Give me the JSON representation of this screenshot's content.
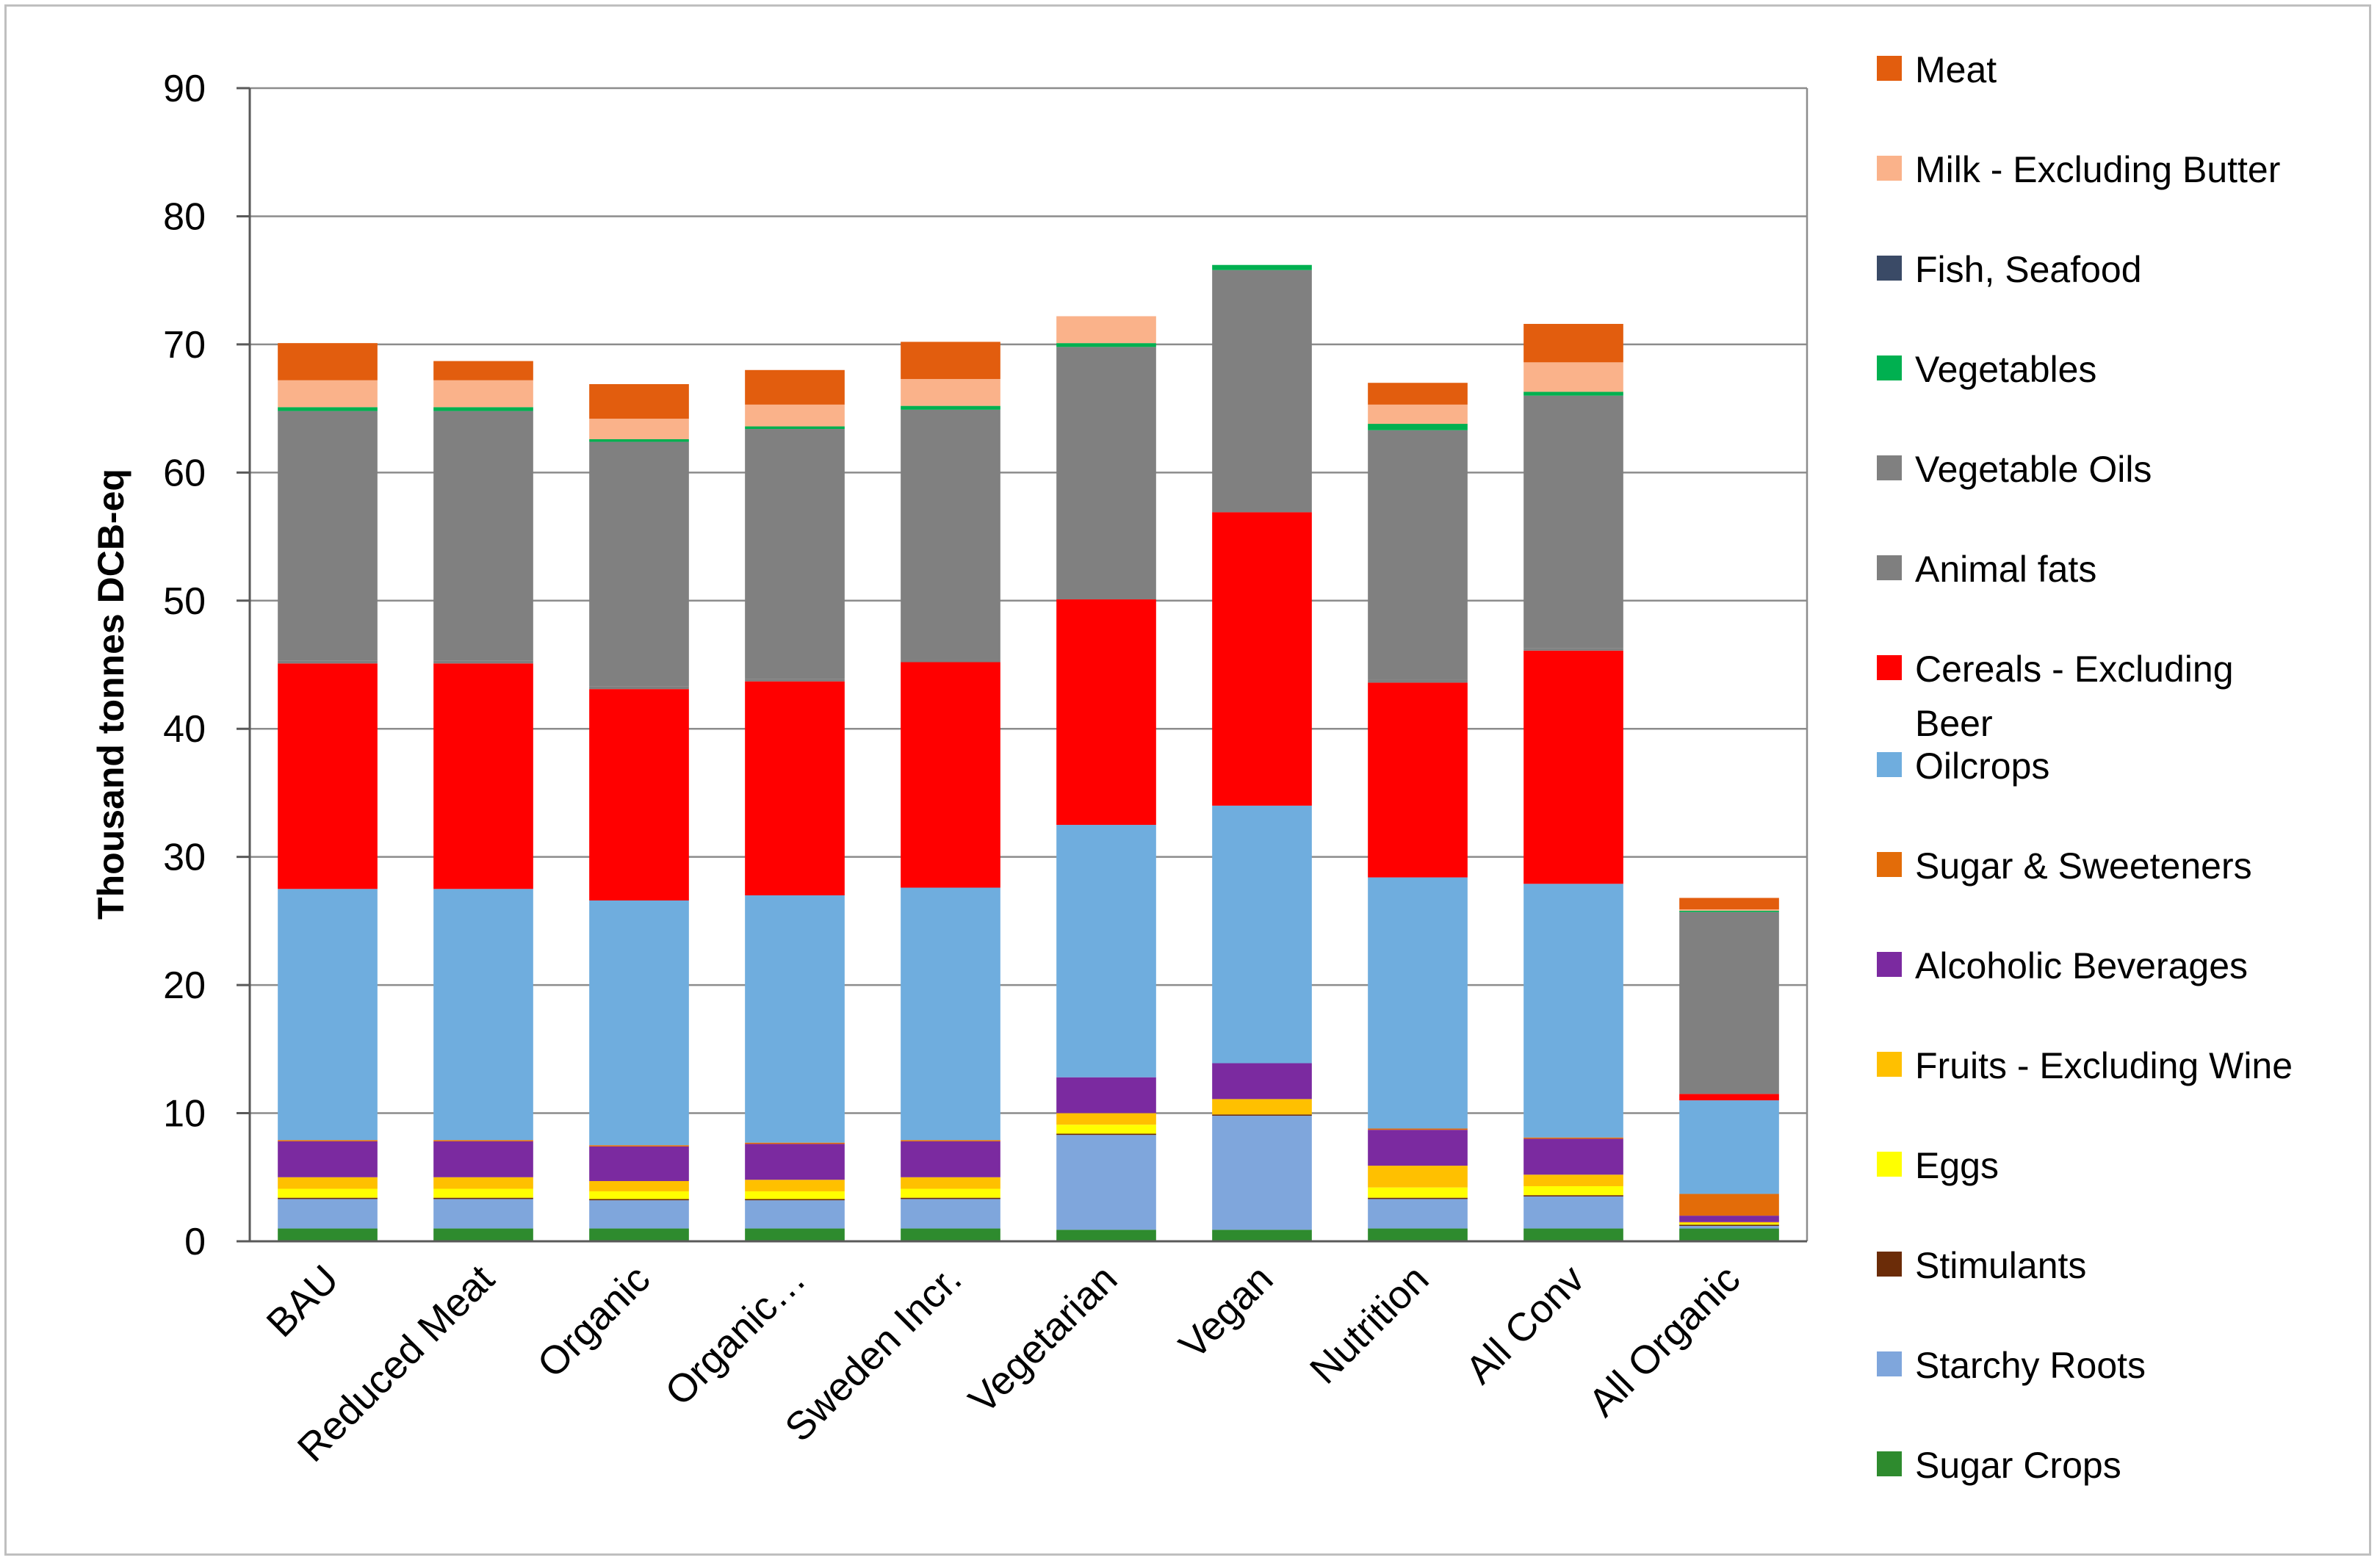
{
  "chart_data": {
    "type": "bar",
    "stacked": true,
    "title": "",
    "xlabel": "",
    "ylabel": "Thousand tonnes DCB-eq",
    "ylim": [
      0,
      90
    ],
    "yticks": [
      0,
      10,
      20,
      30,
      40,
      50,
      60,
      70,
      80,
      90
    ],
    "grid": true,
    "legend_position": "right",
    "categories": [
      "BAU",
      "Reduced Meat",
      "Organic",
      "Organic…",
      "Sweden Incr.",
      "Vegetarian",
      "Vegan",
      "Nutrition",
      "All Conv",
      "All Organic"
    ],
    "legend_extra_line": {
      "after": "Cereals - Excluding",
      "text": "Beer"
    },
    "series": [
      {
        "name": "Sugar Crops",
        "color": "#2e8b2e",
        "values": [
          1.0,
          1.0,
          1.0,
          1.0,
          1.0,
          0.9,
          0.9,
          1.0,
          1.0,
          1.0
        ]
      },
      {
        "name": "Starchy Roots",
        "color": "#7fa6dc",
        "values": [
          2.3,
          2.3,
          2.2,
          2.2,
          2.3,
          7.4,
          8.9,
          2.3,
          2.5,
          0.2
        ]
      },
      {
        "name": "Stimulants",
        "color": "#6b2c08",
        "values": [
          0.1,
          0.1,
          0.1,
          0.1,
          0.1,
          0.1,
          0.1,
          0.1,
          0.1,
          0.1
        ]
      },
      {
        "name": "Eggs",
        "color": "#ffff00",
        "values": [
          0.7,
          0.7,
          0.6,
          0.6,
          0.7,
          0.7,
          0.0,
          0.8,
          0.7,
          0.1
        ]
      },
      {
        "name": "Fruits - Excluding Wine",
        "color": "#ffc000",
        "values": [
          0.9,
          0.9,
          0.8,
          0.9,
          0.9,
          0.9,
          1.2,
          1.7,
          0.9,
          0.1
        ]
      },
      {
        "name": "Alcoholic Beverages",
        "color": "#7b2aa0",
        "values": [
          2.8,
          2.8,
          2.7,
          2.8,
          2.8,
          2.8,
          2.8,
          2.8,
          2.8,
          0.5
        ]
      },
      {
        "name": "Sugar & Sweeteners",
        "color": "#e36c09",
        "values": [
          0.1,
          0.1,
          0.1,
          0.1,
          0.1,
          0.0,
          0.0,
          0.1,
          0.1,
          1.7
        ]
      },
      {
        "name": "Oilcrops",
        "color": "#6fadde",
        "values": [
          19.6,
          19.6,
          19.1,
          19.3,
          19.7,
          19.7,
          20.1,
          19.6,
          19.8,
          7.3
        ]
      },
      {
        "name": "Cereals - Excluding Beer",
        "color": "#ff0000",
        "values": [
          17.6,
          17.6,
          16.5,
          16.7,
          17.6,
          17.6,
          22.9,
          15.2,
          18.2,
          0.5
        ]
      },
      {
        "name": "Animal fats",
        "color": "#7f7f7f",
        "values": [
          0.2,
          0.2,
          0.2,
          0.2,
          0.2,
          0.0,
          0.0,
          0.2,
          0.2,
          0.0
        ]
      },
      {
        "name": "Vegetable Oils",
        "color": "#808080",
        "values": [
          19.5,
          19.5,
          19.1,
          19.5,
          19.5,
          19.7,
          18.9,
          19.5,
          19.7,
          14.2
        ]
      },
      {
        "name": "Vegetables",
        "color": "#00b050",
        "values": [
          0.3,
          0.3,
          0.2,
          0.2,
          0.3,
          0.3,
          0.4,
          0.5,
          0.3,
          0.1
        ]
      },
      {
        "name": "Fish, Seafood",
        "color": "#3a4a66",
        "values": [
          0.0,
          0.0,
          0.0,
          0.0,
          0.0,
          0.0,
          0.0,
          0.0,
          0.0,
          0.0
        ]
      },
      {
        "name": "Milk - Excluding Butter",
        "color": "#fab28a",
        "values": [
          2.1,
          2.1,
          1.6,
          1.7,
          2.1,
          2.1,
          0.0,
          1.5,
          2.3,
          0.1
        ]
      },
      {
        "name": "Meat",
        "color": "#e25d0e",
        "values": [
          2.9,
          1.5,
          2.7,
          2.7,
          2.9,
          0.0,
          0.0,
          1.7,
          3.0,
          0.9
        ]
      }
    ]
  }
}
